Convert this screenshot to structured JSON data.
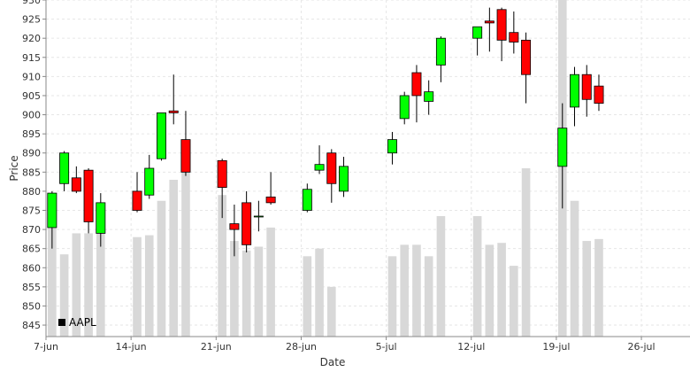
{
  "chart_data": {
    "type": "candlestick",
    "xlabel": "Date",
    "ylabel": "Price",
    "ylim": [
      842,
      930
    ],
    "grid": true,
    "legend": {
      "position": "bottom-left",
      "entries": [
        {
          "name": "AAPL",
          "color": "#000000"
        }
      ]
    },
    "colors": {
      "up": "#00ff00",
      "down": "#ff0000",
      "volume": "#d8d8d8",
      "grid": "#e6e6e6",
      "axis": "#888888"
    },
    "y_ticks": [
      845,
      850,
      855,
      860,
      865,
      870,
      875,
      880,
      885,
      890,
      895,
      900,
      905,
      910,
      915,
      920,
      925,
      930
    ],
    "x_ticks": [
      {
        "label": "7-jun",
        "date": "2010-06-07"
      },
      {
        "label": "14-jun",
        "date": "2010-06-14"
      },
      {
        "label": "21-jun",
        "date": "2010-06-21"
      },
      {
        "label": "28-jun",
        "date": "2010-06-28"
      },
      {
        "label": "5-jul",
        "date": "2010-07-05"
      },
      {
        "label": "12-jul",
        "date": "2010-07-12"
      },
      {
        "label": "19-jul",
        "date": "2010-07-19"
      },
      {
        "label": "26-jul",
        "date": "2010-07-26"
      }
    ],
    "x_range": [
      "2010-06-07",
      "2010-07-30"
    ],
    "volume_scale_max": 930,
    "series": [
      {
        "date": "2010-06-07",
        "open": 870.5,
        "high": 880.0,
        "low": 865.0,
        "close": 879.5,
        "volume": 870.5
      },
      {
        "date": "2010-06-08",
        "open": 882.0,
        "high": 890.5,
        "low": 880.0,
        "close": 890.0,
        "volume": 863.5
      },
      {
        "date": "2010-06-09",
        "open": 883.5,
        "high": 886.5,
        "low": 879.5,
        "close": 880.0,
        "volume": 869.0
      },
      {
        "date": "2010-06-10",
        "open": 885.5,
        "high": 886.0,
        "low": 869.0,
        "close": 872.0,
        "volume": 869.0
      },
      {
        "date": "2010-06-11",
        "open": 869.0,
        "high": 879.5,
        "low": 865.5,
        "close": 877.0,
        "volume": 869.5
      },
      {
        "date": "2010-06-14",
        "open": 880.0,
        "high": 885.0,
        "low": 874.5,
        "close": 875.0,
        "volume": 868.0
      },
      {
        "date": "2010-06-15",
        "open": 879.0,
        "high": 889.5,
        "low": 878.0,
        "close": 886.0,
        "volume": 868.5
      },
      {
        "date": "2010-06-16",
        "open": 888.5,
        "high": 900.5,
        "low": 888.0,
        "close": 900.5,
        "volume": 877.5
      },
      {
        "date": "2010-06-17",
        "open": 901.0,
        "high": 910.5,
        "low": 897.5,
        "close": 900.5,
        "volume": 883.0
      },
      {
        "date": "2010-06-18",
        "open": 893.5,
        "high": 901.0,
        "low": 884.0,
        "close": 885.0,
        "volume": 890.5
      },
      {
        "date": "2010-06-21",
        "open": 888.0,
        "high": 888.5,
        "low": 873.0,
        "close": 881.0,
        "volume": 879.0
      },
      {
        "date": "2010-06-22",
        "open": 871.5,
        "high": 876.5,
        "low": 863.0,
        "close": 870.0,
        "volume": 867.0
      },
      {
        "date": "2010-06-23",
        "open": 877.0,
        "high": 880.0,
        "low": 864.0,
        "close": 866.0,
        "volume": 864.5
      },
      {
        "date": "2010-06-24",
        "open": 873.5,
        "high": 877.5,
        "low": 869.5,
        "close": 873.5,
        "volume": 865.5
      },
      {
        "date": "2010-06-25",
        "open": 878.5,
        "high": 885.0,
        "low": 876.5,
        "close": 877.0,
        "volume": 870.5
      },
      {
        "date": "2010-06-28",
        "open": 875.0,
        "high": 882.0,
        "low": 874.5,
        "close": 880.5,
        "volume": 863.0
      },
      {
        "date": "2010-06-29",
        "open": 885.5,
        "high": 892.0,
        "low": 884.5,
        "close": 887.0,
        "volume": 865.0
      },
      {
        "date": "2010-06-30",
        "open": 890.0,
        "high": 891.0,
        "low": 877.0,
        "close": 882.0,
        "volume": 855.0
      },
      {
        "date": "2010-07-01",
        "open": 880.0,
        "high": 889.0,
        "low": 878.5,
        "close": 886.5,
        "volume": null
      },
      {
        "date": "2010-07-05",
        "open": 890.0,
        "high": 895.5,
        "low": 887.0,
        "close": 893.5,
        "volume": 863.0
      },
      {
        "date": "2010-07-06",
        "open": 899.0,
        "high": 906.0,
        "low": 897.5,
        "close": 905.0,
        "volume": 866.0
      },
      {
        "date": "2010-07-07",
        "open": 911.0,
        "high": 913.0,
        "low": 898.0,
        "close": 905.0,
        "volume": 866.0
      },
      {
        "date": "2010-07-08",
        "open": 903.5,
        "high": 909.0,
        "low": 900.0,
        "close": 906.0,
        "volume": 863.0
      },
      {
        "date": "2010-07-09",
        "open": 913.0,
        "high": 920.5,
        "low": 908.5,
        "close": 920.0,
        "volume": 873.5
      },
      {
        "date": "2010-07-12",
        "open": 920.0,
        "high": 923.0,
        "low": 915.5,
        "close": 923.0,
        "volume": 873.5
      },
      {
        "date": "2010-07-13",
        "open": 924.5,
        "high": 928.0,
        "low": 916.5,
        "close": 924.0,
        "volume": 866.0
      },
      {
        "date": "2010-07-14",
        "open": 927.5,
        "high": 928.0,
        "low": 914.0,
        "close": 919.5,
        "volume": 866.5
      },
      {
        "date": "2010-07-15",
        "open": 921.5,
        "high": 927.0,
        "low": 916.0,
        "close": 919.0,
        "volume": 860.5
      },
      {
        "date": "2010-07-16",
        "open": 919.5,
        "high": 921.5,
        "low": 903.0,
        "close": 910.5,
        "volume": 886.0
      },
      {
        "date": "2010-07-19",
        "open": 886.5,
        "high": 903.0,
        "low": 875.5,
        "close": 896.5,
        "volume": 930.0
      },
      {
        "date": "2010-07-20",
        "open": 902.0,
        "high": 912.5,
        "low": 897.0,
        "close": 910.5,
        "volume": 877.5
      },
      {
        "date": "2010-07-21",
        "open": 910.5,
        "high": 913.0,
        "low": 899.5,
        "close": 904.0,
        "volume": 867.0
      },
      {
        "date": "2010-07-22",
        "open": 907.5,
        "high": 910.5,
        "low": 901.0,
        "close": 903.0,
        "volume": 867.5
      }
    ]
  }
}
